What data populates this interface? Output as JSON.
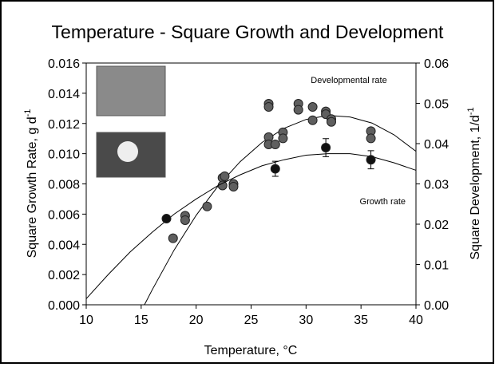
{
  "chart_data": {
    "type": "scatter",
    "title": "Temperature - Square Growth and Development",
    "x_label": "Temperature, °C",
    "y_label": "Square Growth Rate, g d",
    "y_label_sup": "-1",
    "y2_label": "Square Development, 1/d",
    "y2_label_sup": "-1",
    "xlim": [
      10,
      40
    ],
    "xticks": [
      10,
      15,
      20,
      25,
      30,
      35,
      40
    ],
    "ylim": [
      0,
      0.016
    ],
    "yticks": [
      {
        "value": 0,
        "label": "0.000"
      },
      {
        "value": 0.002,
        "label": "0.002"
      },
      {
        "value": 0.004,
        "label": "0.004"
      },
      {
        "value": 0.006,
        "label": "0.006"
      },
      {
        "value": 0.008,
        "label": "0.008"
      },
      {
        "value": 0.01,
        "label": "0.010"
      },
      {
        "value": 0.012,
        "label": "0.012"
      },
      {
        "value": 0.014,
        "label": "0.014"
      },
      {
        "value": 0.016,
        "label": "0.016"
      }
    ],
    "y2lim": [
      0,
      0.06
    ],
    "y2ticks": [
      {
        "value": 0,
        "label": "0.00"
      },
      {
        "value": 0.01,
        "label": "0.01"
      },
      {
        "value": 0.02,
        "label": "0.02"
      },
      {
        "value": 0.03,
        "label": "0.03"
      },
      {
        "value": 0.04,
        "label": "0.04"
      },
      {
        "value": 0.05,
        "label": "0.05"
      },
      {
        "value": 0.06,
        "label": "0.06"
      }
    ],
    "series": [
      {
        "name": "Developmental rate",
        "color": "#5f5f5f",
        "axis": "y2",
        "x": [
          17.9,
          19.0,
          19.0,
          21.0,
          22.4,
          22.6,
          22.4,
          23.4,
          23.4,
          26.6,
          26.6,
          26.6,
          26.6,
          27.2,
          27.9,
          27.9,
          29.3,
          29.3,
          30.6,
          30.6,
          31.8,
          31.8,
          32.3,
          32.3,
          35.9,
          35.9
        ],
        "values": [
          0.0165,
          0.0221,
          0.021,
          0.0244,
          0.0315,
          0.0319,
          0.0296,
          0.03,
          0.0293,
          0.0499,
          0.0491,
          0.0416,
          0.0398,
          0.0398,
          0.0428,
          0.0413,
          0.0499,
          0.0484,
          0.0491,
          0.0458,
          0.048,
          0.0473,
          0.0461,
          0.0454,
          0.0431,
          0.0413
        ],
        "fit_x": [
          15.3,
          16,
          18,
          20,
          22,
          24,
          26,
          28,
          30,
          32,
          34,
          36,
          38,
          40
        ],
        "fit_values": [
          0,
          0.0037,
          0.0136,
          0.0222,
          0.0295,
          0.0355,
          0.0403,
          0.0438,
          0.046,
          0.047,
          0.0466,
          0.0451,
          0.0422,
          0.0381
        ]
      },
      {
        "name": "Growth rate",
        "color": "#111111",
        "axis": "y",
        "x": [
          17.3,
          27.2,
          31.8,
          35.9
        ],
        "values": [
          0.0057,
          0.009,
          0.0104,
          0.0096
        ],
        "errors": [
          null,
          0.0005,
          0.0006,
          0.0006
        ],
        "fit_x": [
          10,
          12,
          14,
          16,
          18,
          20,
          22,
          24,
          26,
          28,
          30,
          32,
          34,
          36,
          38,
          40
        ],
        "fit_values": [
          0.0004,
          0.002,
          0.0035,
          0.0048,
          0.006,
          0.007,
          0.0079,
          0.0086,
          0.0092,
          0.0096,
          0.0099,
          0.01,
          0.01,
          0.0098,
          0.0094,
          0.0089
        ]
      }
    ]
  }
}
